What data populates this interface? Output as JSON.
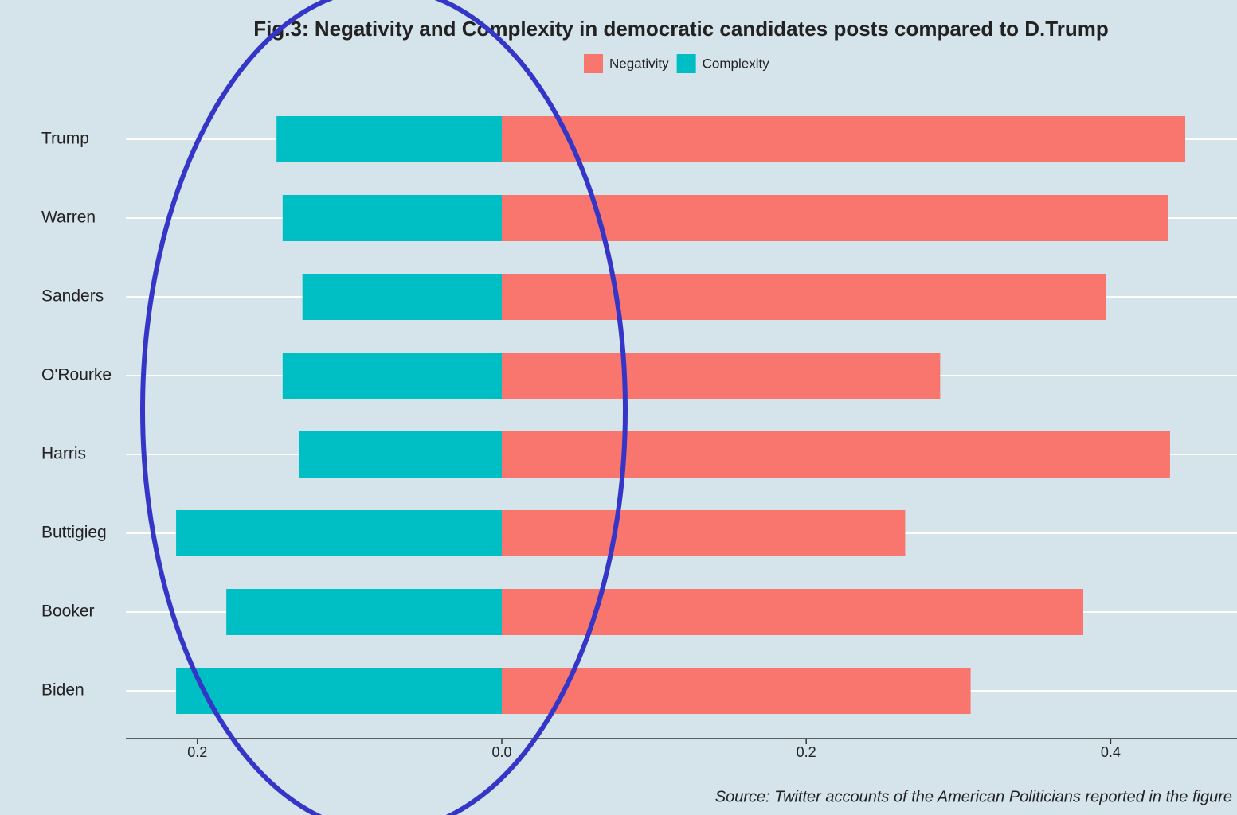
{
  "chart_data": {
    "type": "diverging_bar",
    "title": "Fig.3: Negativity and Complexity in democratic candidates posts compared to D.Trump",
    "caption": "Source: Twitter accounts of the American Politicians reported in the figure",
    "categories": [
      "Trump",
      "Warren",
      "Sanders",
      "O'Rourke",
      "Harris",
      "Buttigieg",
      "Booker",
      "Biden"
    ],
    "series": [
      {
        "name": "Negativity",
        "color": "#f8766d",
        "values": [
          0.449,
          0.438,
          0.397,
          0.288,
          0.439,
          0.265,
          0.382,
          0.308
        ]
      },
      {
        "name": "Complexity",
        "color": "#00bfc4",
        "values": [
          -0.148,
          -0.144,
          -0.131,
          -0.144,
          -0.133,
          -0.214,
          -0.181,
          -0.214
        ]
      }
    ],
    "xlim": [
      -0.247,
      0.483
    ],
    "xticks": [
      {
        "value": -0.2,
        "label": "0.2"
      },
      {
        "value": 0,
        "label": "0.0"
      },
      {
        "value": 0.2,
        "label": "0.2"
      },
      {
        "value": 0.4,
        "label": "0.4"
      }
    ],
    "grid": true,
    "legend": "top"
  }
}
